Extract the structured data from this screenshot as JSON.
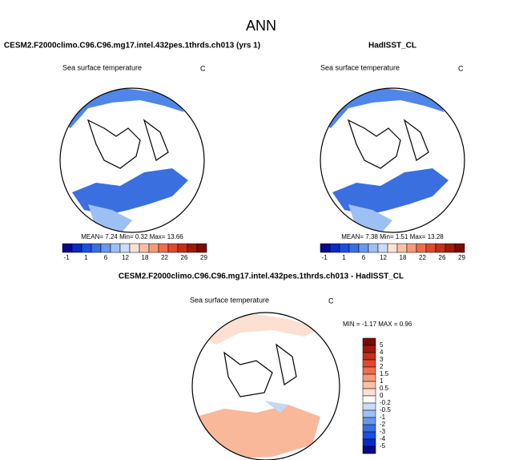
{
  "title": "ANN",
  "panels": [
    {
      "title": "CESM2.F2000climo.C96.C96.mg17.intel.432pes.1thrds.ch013 (yrs 1)",
      "variable": "Sea surface temperature",
      "units": "C",
      "stats": [
        {
          "label": "MEAN=",
          "value": "7.24"
        },
        {
          "label": "Min=",
          "value": "0.32"
        },
        {
          "label": "Max=",
          "value": "13.66"
        }
      ],
      "colorbar": [
        "-1",
        "1",
        "6",
        "12",
        "18",
        "22",
        "26",
        "29"
      ]
    },
    {
      "title": "HadISST_CL",
      "variable": "Sea surface temperature",
      "units": "C",
      "stats": [
        {
          "label": "MEAN=",
          "value": "7.38"
        },
        {
          "label": "Min=",
          "value": "1.51"
        },
        {
          "label": "Max=",
          "value": "13.28"
        }
      ],
      "colorbar": [
        "-1",
        "1",
        "6",
        "12",
        "18",
        "22",
        "26",
        "29"
      ]
    },
    {
      "title": "CESM2.F2000climo.C96.C96.mg17.intel.432pes.1thrds.ch013 - HadISST_CL",
      "variable": "Sea surface temperature",
      "units": "C",
      "stats": [
        {
          "label": "MIN =",
          "value": "-1.17"
        },
        {
          "label": "MAX =",
          "value": "0.96"
        }
      ],
      "colorbar": [
        "5",
        "4",
        "3",
        "2",
        "1.5",
        "1",
        "0.5",
        "0",
        "-0.2",
        "-0.5",
        "-1",
        "-2",
        "-3",
        "-4",
        "-5"
      ]
    }
  ]
}
